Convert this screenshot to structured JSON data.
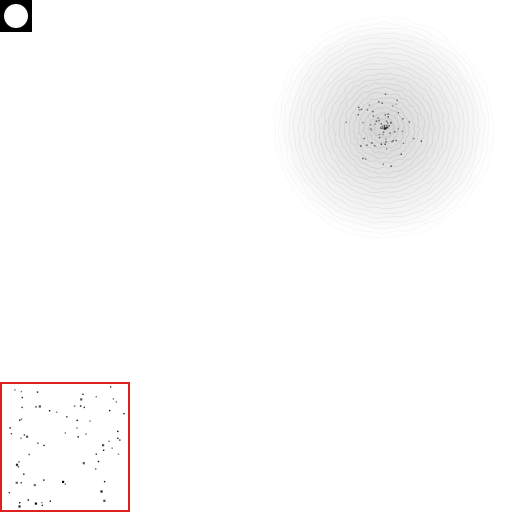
{
  "corner_icon": {
    "icon": "circle-icon",
    "bg_color": "#000000",
    "fg_color": "#ffffff"
  },
  "blob": {
    "icon": "radial-noise-blob"
  },
  "dot_panel": {
    "border_color": "#e02020",
    "dot_color": "#000000"
  }
}
